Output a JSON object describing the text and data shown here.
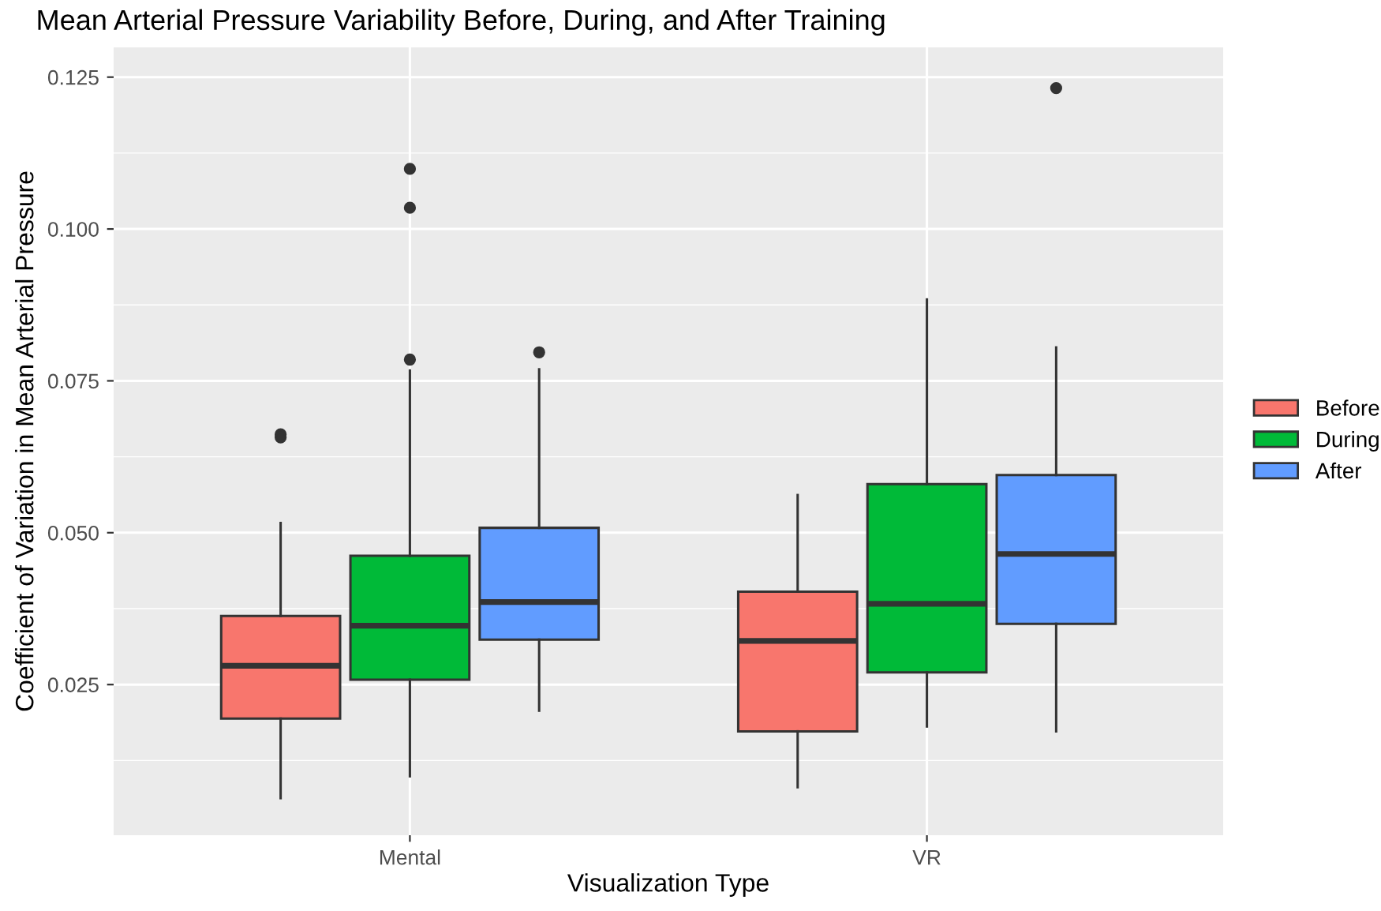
{
  "chart_data": {
    "type": "box",
    "title": "Mean Arterial Pressure Variability Before, During, and After Training",
    "xlabel": "Visualization Type",
    "ylabel": "Coefficient of Variation in Mean Arterial Pressure",
    "categories": [
      "Mental",
      "VR"
    ],
    "series": [
      {
        "name": "Before",
        "color": "#f8766d",
        "boxes": [
          {
            "low": 0.0063,
            "q1": 0.0194,
            "median": 0.0281,
            "q3": 0.0363,
            "high": 0.0516,
            "outliers": [
              0.0662,
              0.0657
            ]
          },
          {
            "low": 0.0081,
            "q1": 0.0173,
            "median": 0.0322,
            "q3": 0.0403,
            "high": 0.0562
          }
        ]
      },
      {
        "name": "During",
        "color": "#00ba38",
        "boxes": [
          {
            "low": 0.0099,
            "q1": 0.0258,
            "median": 0.0347,
            "q3": 0.0462,
            "high": 0.0767,
            "outliers": [
              0.1099,
              0.1035,
              0.0785
            ]
          },
          {
            "low": 0.0181,
            "q1": 0.027,
            "median": 0.0383,
            "q3": 0.058,
            "high": 0.0884
          }
        ]
      },
      {
        "name": "After",
        "color": "#619cff",
        "boxes": [
          {
            "low": 0.0207,
            "q1": 0.0324,
            "median": 0.0386,
            "q3": 0.0508,
            "high": 0.0769,
            "outliers": [
              0.0797
            ]
          },
          {
            "low": 0.0173,
            "q1": 0.035,
            "median": 0.0465,
            "q3": 0.0595,
            "high": 0.0805,
            "outliers": [
              0.1232
            ]
          }
        ]
      }
    ],
    "ylim": [
      0.0002,
      0.1299
    ],
    "yticks": [
      {
        "value": 0.025,
        "label": "0.025"
      },
      {
        "value": 0.05,
        "label": "0.050"
      },
      {
        "value": 0.075,
        "label": "0.075"
      },
      {
        "value": 0.1,
        "label": "0.100"
      },
      {
        "value": 0.125,
        "label": "0.125"
      }
    ],
    "grid": true,
    "legend": "right"
  }
}
